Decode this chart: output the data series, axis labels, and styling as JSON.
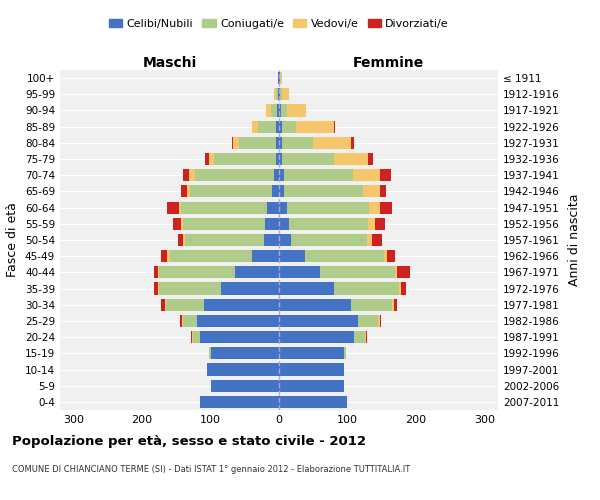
{
  "age_groups": [
    "0-4",
    "5-9",
    "10-14",
    "15-19",
    "20-24",
    "25-29",
    "30-34",
    "35-39",
    "40-44",
    "45-49",
    "50-54",
    "55-59",
    "60-64",
    "65-69",
    "70-74",
    "75-79",
    "80-84",
    "85-89",
    "90-94",
    "95-99",
    "100+"
  ],
  "birth_years": [
    "2007-2011",
    "2002-2006",
    "1997-2001",
    "1992-1996",
    "1987-1991",
    "1982-1986",
    "1977-1981",
    "1972-1976",
    "1967-1971",
    "1962-1966",
    "1957-1961",
    "1952-1956",
    "1947-1951",
    "1942-1946",
    "1937-1941",
    "1932-1936",
    "1927-1931",
    "1922-1926",
    "1917-1921",
    "1912-1916",
    "≤ 1911"
  ],
  "maschi": {
    "celibi": [
      115,
      100,
      105,
      100,
      115,
      120,
      110,
      85,
      65,
      40,
      22,
      20,
      18,
      10,
      8,
      5,
      4,
      5,
      3,
      2,
      1
    ],
    "coniugati": [
      0,
      0,
      0,
      2,
      10,
      20,
      55,
      90,
      110,
      120,
      115,
      120,
      125,
      120,
      115,
      90,
      55,
      25,
      8,
      3,
      1
    ],
    "vedovi": [
      0,
      0,
      0,
      0,
      2,
      2,
      2,
      2,
      2,
      3,
      3,
      3,
      3,
      5,
      8,
      8,
      8,
      10,
      8,
      3,
      0
    ],
    "divorziati": [
      0,
      0,
      0,
      0,
      2,
      2,
      5,
      5,
      5,
      10,
      8,
      12,
      18,
      8,
      10,
      5,
      2,
      0,
      0,
      0,
      0
    ]
  },
  "femmine": {
    "nubili": [
      100,
      95,
      95,
      95,
      110,
      115,
      105,
      80,
      60,
      38,
      18,
      15,
      12,
      8,
      8,
      5,
      5,
      5,
      3,
      2,
      1
    ],
    "coniugate": [
      0,
      0,
      0,
      3,
      15,
      30,
      60,
      95,
      110,
      115,
      110,
      115,
      120,
      115,
      100,
      75,
      45,
      20,
      8,
      3,
      1
    ],
    "vedove": [
      0,
      0,
      0,
      0,
      2,
      2,
      3,
      3,
      3,
      5,
      8,
      10,
      15,
      25,
      40,
      50,
      55,
      55,
      28,
      10,
      2
    ],
    "divorziate": [
      0,
      0,
      0,
      0,
      2,
      2,
      5,
      8,
      18,
      12,
      15,
      15,
      18,
      8,
      15,
      8,
      5,
      2,
      0,
      0,
      0
    ]
  },
  "colors": {
    "celibi_nubili": "#4472C4",
    "coniugati": "#AECB8A",
    "vedovi": "#F5C76A",
    "divorziati": "#CC2222"
  },
  "xlim": 320,
  "title": "Popolazione per età, sesso e stato civile - 2012",
  "subtitle": "COMUNE DI CHIANCIANO TERME (SI) - Dati ISTAT 1° gennaio 2012 - Elaborazione TUTTITALIA.IT",
  "ylabel": "Fasce di età",
  "right_ylabel": "Anni di nascita",
  "legend_labels": [
    "Celibi/Nubili",
    "Coniugati/e",
    "Vedovi/e",
    "Divorziati/e"
  ]
}
